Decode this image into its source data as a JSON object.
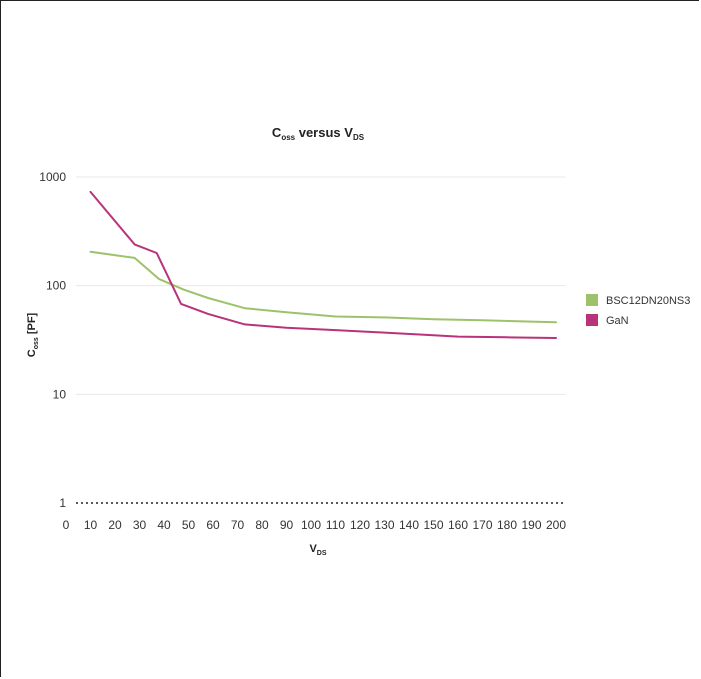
{
  "chart_data": {
    "type": "line",
    "title": {
      "main": "C",
      "sub1": "oss",
      "mid": " versus V",
      "sub2": "DS"
    },
    "xlabel": {
      "main": "V",
      "sub": "DS"
    },
    "ylabel": {
      "main": "C",
      "sub": "oss",
      "rest": " [PF]"
    },
    "x_scale": "linear",
    "y_scale": "log",
    "xlim": [
      0,
      200
    ],
    "ylim": [
      1,
      1000
    ],
    "x_ticks": [
      0,
      10,
      20,
      30,
      40,
      50,
      60,
      70,
      80,
      90,
      100,
      110,
      120,
      130,
      140,
      150,
      160,
      170,
      180,
      190,
      200
    ],
    "y_ticks": [
      1,
      10,
      100,
      1000
    ],
    "x_tick_labels": [
      "0",
      "10",
      "20",
      "30",
      "40",
      "50",
      "60",
      "70",
      "80",
      "90",
      "100",
      "110",
      "120",
      "130",
      "140",
      "150",
      "160",
      "170",
      "180",
      "190",
      "200"
    ],
    "y_tick_labels": [
      "1",
      "10",
      "100",
      "1000"
    ],
    "grid": "horizontal",
    "legend_position": "right",
    "series": [
      {
        "name": "BSC12DN20NS3",
        "color": "#9dc26a",
        "x": [
          10,
          28,
          38,
          48,
          58,
          73,
          90,
          110,
          130,
          150,
          170,
          200
        ],
        "y": [
          205,
          180,
          115,
          92,
          77,
          62,
          57,
          52,
          51,
          49,
          48,
          46
        ]
      },
      {
        "name": "GaN",
        "color": "#b8337a",
        "x": [
          10,
          28,
          37,
          47,
          58,
          73,
          90,
          110,
          130,
          150,
          160,
          180,
          200
        ],
        "y": [
          730,
          240,
          200,
          68,
          55,
          44,
          41,
          39,
          37,
          35,
          34,
          33.5,
          33
        ]
      }
    ]
  }
}
